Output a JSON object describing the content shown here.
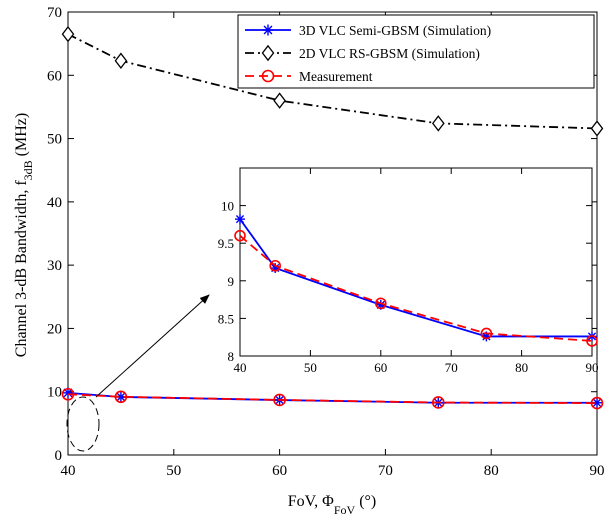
{
  "chart_data": [
    {
      "type": "line",
      "title": "",
      "xlabel": "FoV,  Φ",
      "xlabel_sub": "FoV",
      "xlabel_tail": " (°)",
      "ylabel": "Channel 3-dB Bandwidth, f",
      "ylabel_sub": "3dB",
      "ylabel_tail": " (MHz)",
      "xlim": [
        40,
        90
      ],
      "ylim": [
        0,
        70
      ],
      "xticks": [
        40,
        50,
        60,
        70,
        80,
        90
      ],
      "yticks": [
        0,
        10,
        20,
        30,
        40,
        50,
        60,
        70
      ],
      "grid": false,
      "legend_position": "top-right",
      "series": [
        {
          "name": "3D VLC Semi-GBSM (Simulation)",
          "color": "#0000ff",
          "line_style": "solid",
          "marker": "asterisk",
          "x": [
            40,
            45,
            60,
            75,
            90
          ],
          "y": [
            9.82,
            9.17,
            8.68,
            8.26,
            8.26
          ]
        },
        {
          "name": "2D VLC RS-GBSM (Simulation)",
          "color": "#000000",
          "line_style": "dash-dot",
          "marker": "diamond",
          "x": [
            40,
            45,
            60,
            75,
            90
          ],
          "y": [
            66.5,
            62.3,
            56.0,
            52.4,
            51.6
          ]
        },
        {
          "name": "Measurement",
          "color": "#ff0000",
          "line_style": "dashed",
          "marker": "circle",
          "x": [
            40,
            45,
            60,
            75,
            90
          ],
          "y": [
            9.6,
            9.2,
            8.7,
            8.3,
            8.2
          ]
        }
      ]
    },
    {
      "type": "line",
      "title": "",
      "xlim": [
        40,
        90
      ],
      "ylim": [
        8,
        10.5
      ],
      "xticks": [
        40,
        50,
        60,
        70,
        80,
        90
      ],
      "yticks": [
        8,
        8.5,
        9,
        9.5,
        10
      ],
      "grid": false,
      "series": [
        {
          "name": "3D VLC Semi-GBSM (Simulation)",
          "color": "#0000ff",
          "line_style": "solid",
          "marker": "asterisk",
          "x": [
            40,
            45,
            60,
            75,
            90
          ],
          "y": [
            9.82,
            9.17,
            8.68,
            8.26,
            8.26
          ]
        },
        {
          "name": "Measurement",
          "color": "#ff0000",
          "line_style": "dashed",
          "marker": "circle",
          "x": [
            40,
            45,
            60,
            75,
            90
          ],
          "y": [
            9.6,
            9.2,
            8.7,
            8.3,
            8.2
          ]
        }
      ]
    }
  ]
}
